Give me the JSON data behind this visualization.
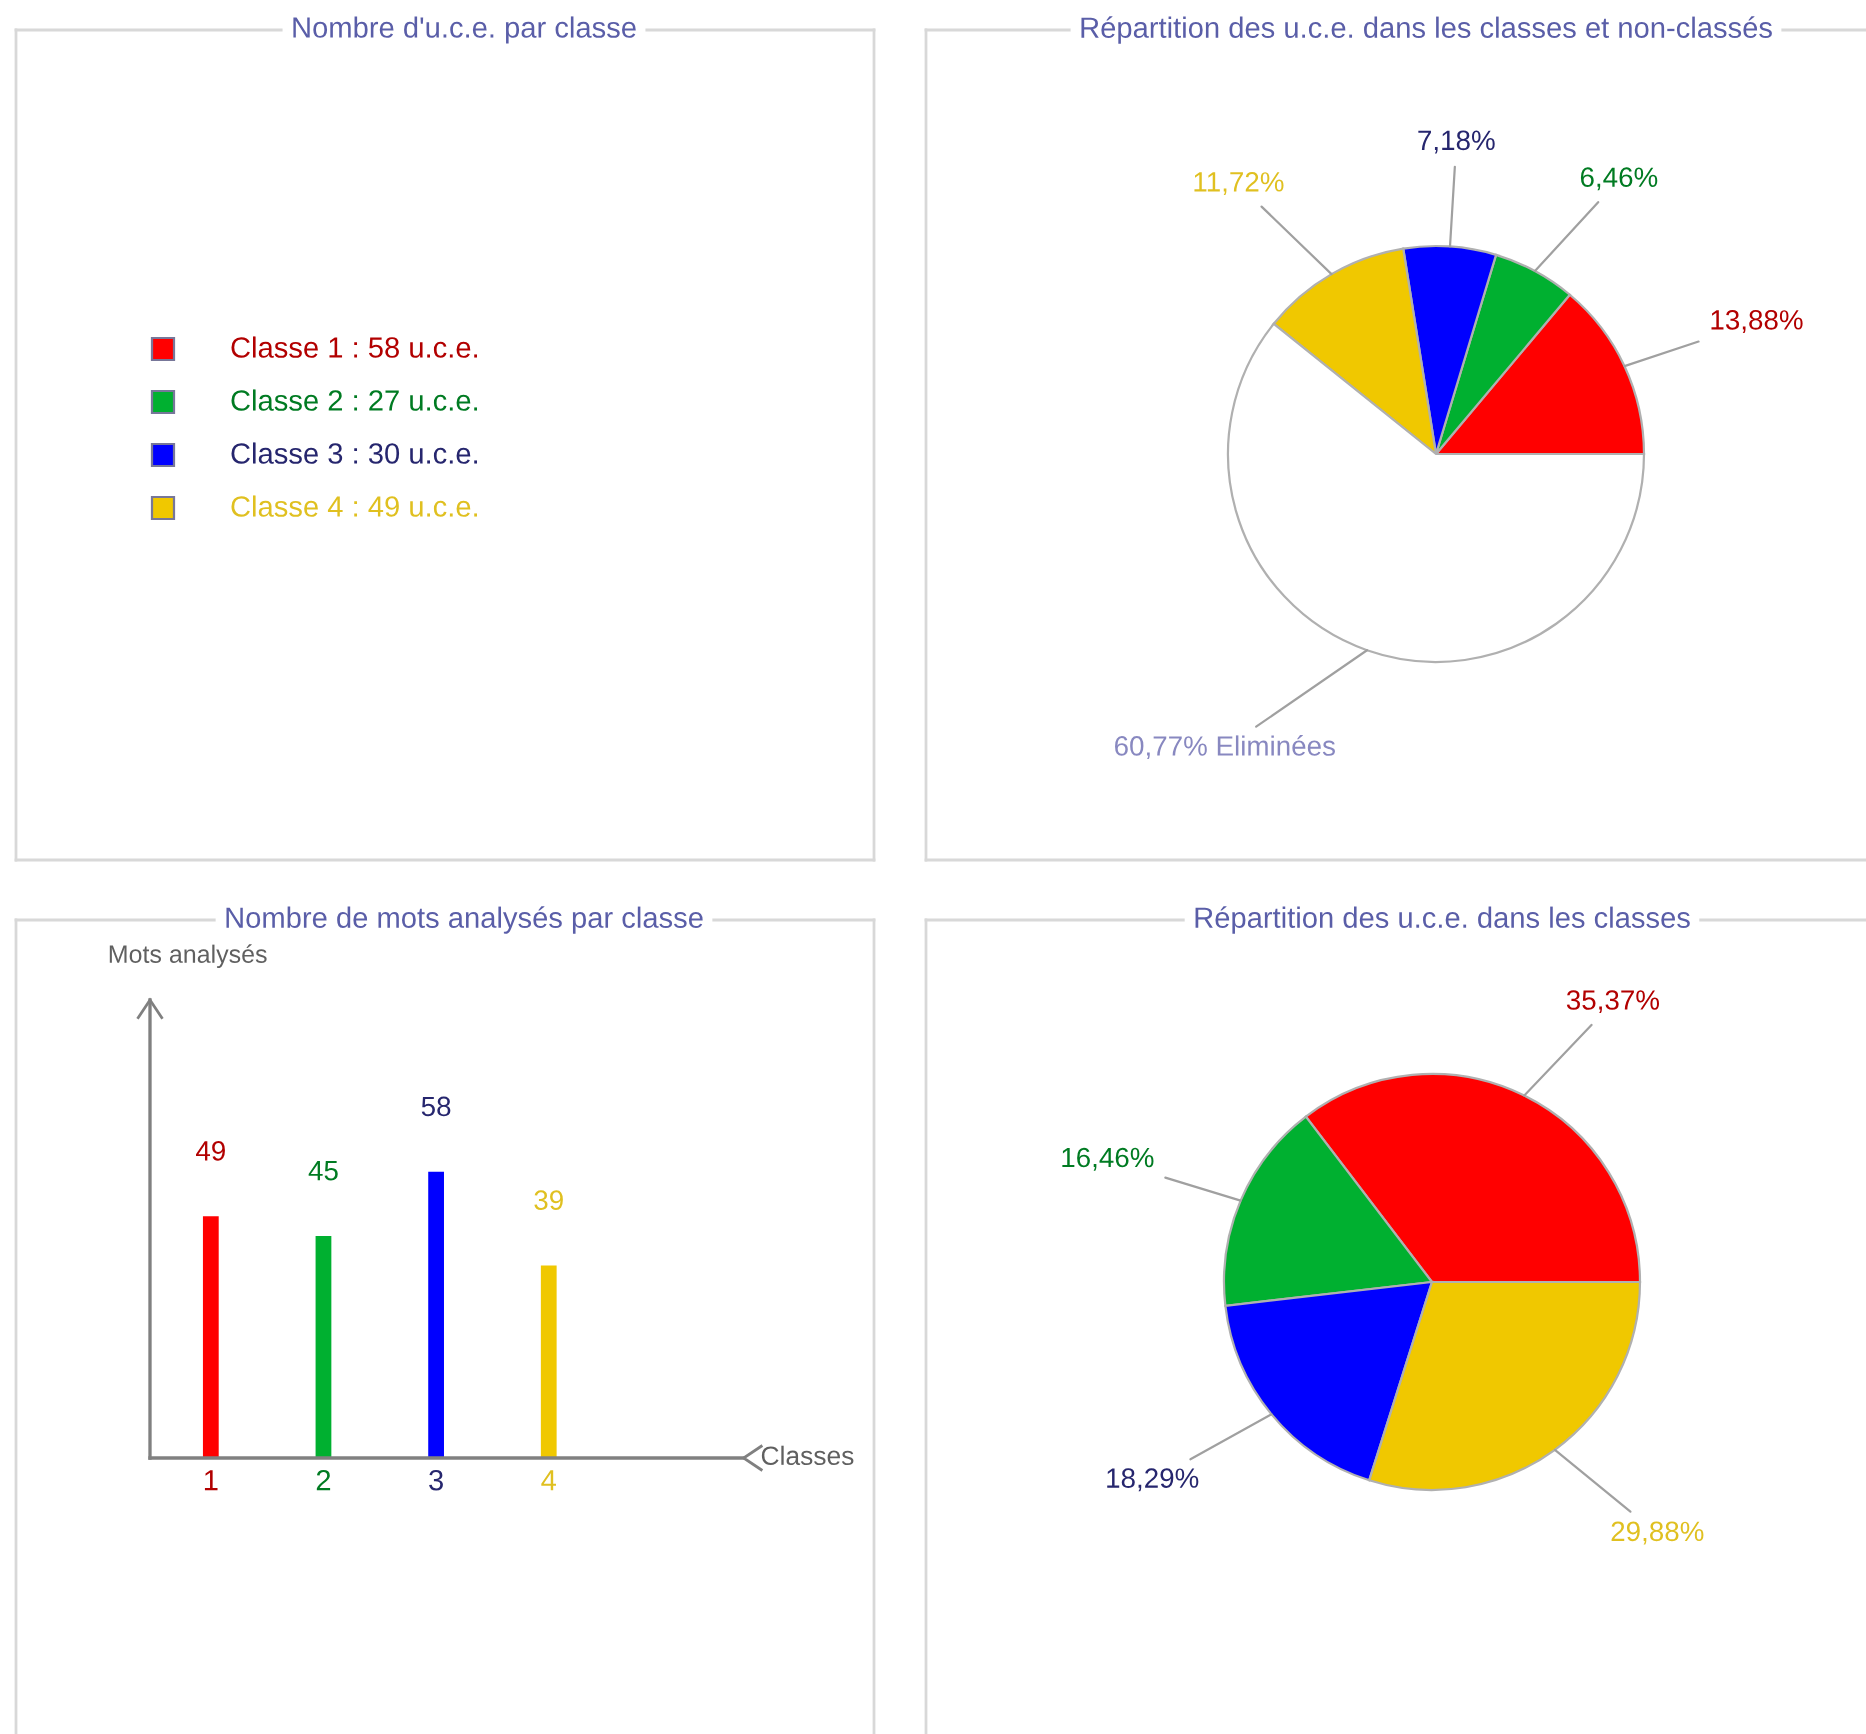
{
  "chart_data": [
    {
      "type": "other",
      "title": "Nombre d'u.c.e. par classe",
      "annotations": [
        "Classe 1 : 58 u.c.e.",
        "Classe 2 : 27 u.c.e.",
        "Classe 3 : 30 u.c.e.",
        "Classe 4 : 49 u.c.e."
      ],
      "colors": [
        "#ff0000",
        "#00b030",
        "#0000ff",
        "#f0c800"
      ]
    },
    {
      "type": "pie",
      "title": "Répartition des u.c.e. dans les classes et non-classés",
      "categories": [
        null,
        null,
        null,
        null,
        "Eliminées"
      ],
      "values": [
        13.88,
        6.46,
        7.18,
        11.72,
        60.77
      ],
      "colors": [
        "#ff0000",
        "#00b030",
        "#0000ff",
        "#f0c800",
        "#ffffff"
      ],
      "value_labels": [
        "13,88%",
        "6,46%",
        "7,18%",
        "11,72%",
        "60,77%"
      ]
    },
    {
      "type": "bar",
      "title": "Nombre de mots analysés par classe",
      "xlabel": "Classes",
      "ylabel": "Mots analysés",
      "categories": [
        "1",
        "2",
        "3",
        "4"
      ],
      "values": [
        49,
        45,
        58,
        39
      ],
      "colors": [
        "#ff0000",
        "#00b030",
        "#0000ff",
        "#f0c800"
      ],
      "data_labels": true,
      "tick_labels": "x"
    },
    {
      "type": "pie",
      "title": "Répartition des u.c.e. dans les classes",
      "categories": [
        null,
        null,
        null,
        null
      ],
      "values": [
        35.37,
        16.46,
        18.29,
        29.88
      ],
      "colors": [
        "#ff0000",
        "#00b030",
        "#0000ff",
        "#f0c800"
      ],
      "value_labels": [
        "35,37%",
        "16,46%",
        "18,29%",
        "29,88%"
      ]
    }
  ]
}
